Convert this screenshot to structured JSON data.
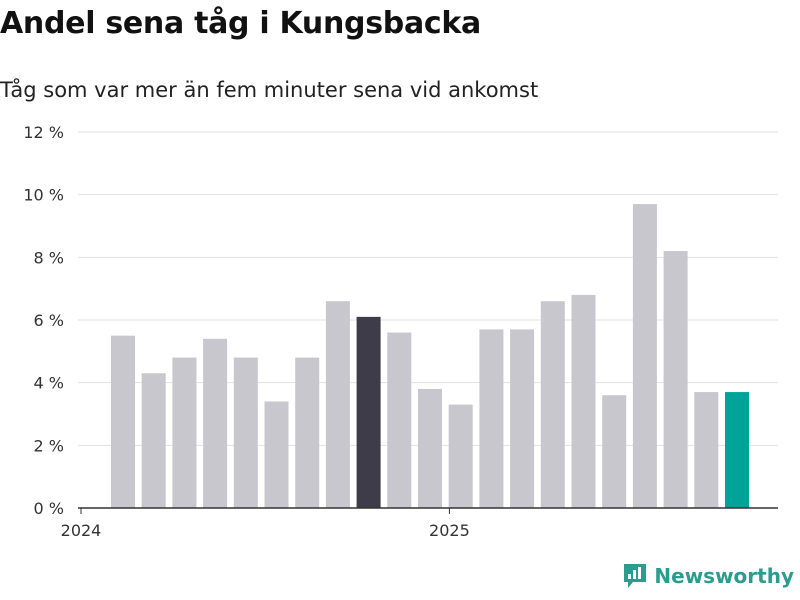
{
  "title": "Andel sena tåg i Kungsbacka",
  "subtitle": "Tåg som var mer än fem minuter sena vid ankomst",
  "brand": {
    "name": "Newsworthy",
    "color": "#2a9d8f"
  },
  "colors": {
    "default": "#c8c7ce",
    "highlight": "#3d3c48",
    "latest": "#00a398"
  },
  "chart_data": {
    "type": "bar",
    "title": "Andel sena tåg i Kungsbacka",
    "subtitle": "Tåg som var mer än fem minuter sena vid ankomst",
    "ylim": [
      0,
      12
    ],
    "y_ticks": [
      0,
      2,
      4,
      6,
      8,
      10,
      12
    ],
    "y_tick_labels": [
      "0 %",
      "2 %",
      "4 %",
      "6 %",
      "8 %",
      "10 %",
      "12 %"
    ],
    "x_tick_labels": [
      {
        "label": "2024",
        "index": 0
      },
      {
        "label": "2025",
        "index": 12
      }
    ],
    "grid": true,
    "values": [
      5.5,
      4.3,
      4.8,
      5.4,
      4.8,
      3.4,
      4.8,
      6.6,
      6.1,
      5.6,
      3.8,
      3.3,
      5.7,
      5.7,
      6.6,
      6.8,
      3.6,
      9.7,
      8.2,
      3.7,
      3.7
    ],
    "bar_colors": [
      "default",
      "default",
      "default",
      "default",
      "default",
      "default",
      "default",
      "default",
      "highlight",
      "default",
      "default",
      "default",
      "default",
      "default",
      "default",
      "default",
      "default",
      "default",
      "default",
      "default",
      "latest"
    ]
  }
}
